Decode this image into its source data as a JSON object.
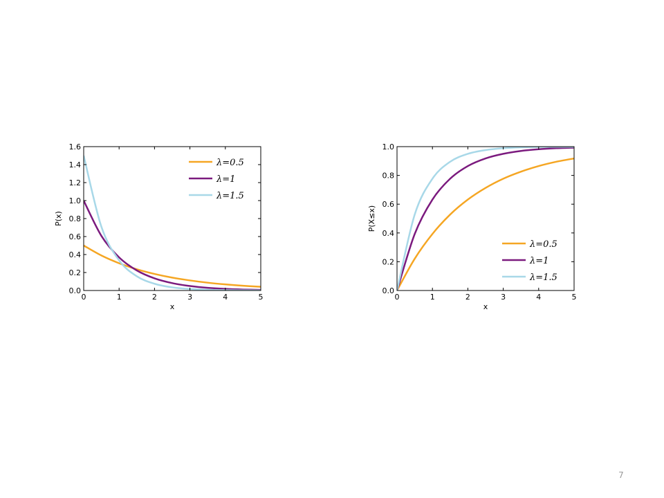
{
  "chart_data": [
    {
      "type": "line",
      "x_label": "x",
      "y_label": "P(x)",
      "x": [
        0,
        0.5,
        1,
        1.5,
        2,
        2.5,
        3,
        3.5,
        4,
        4.5,
        5
      ],
      "series": [
        {
          "name": "λ=0.5",
          "color": "#f5a623",
          "values": [
            0.5,
            0.389,
            0.303,
            0.236,
            0.184,
            0.143,
            0.112,
            0.087,
            0.068,
            0.053,
            0.041
          ]
        },
        {
          "name": "λ=1",
          "color": "#7b1a7e",
          "values": [
            1,
            0.607,
            0.368,
            0.223,
            0.135,
            0.082,
            0.05,
            0.03,
            0.018,
            0.011,
            0.007
          ]
        },
        {
          "name": "λ=1.5",
          "color": "#a8d8e8",
          "values": [
            1.5,
            0.709,
            0.335,
            0.158,
            0.075,
            0.035,
            0.017,
            0.008,
            0.004,
            0.002,
            0.001
          ]
        }
      ],
      "xlim": [
        0,
        5
      ],
      "xticks": [
        0,
        1,
        2,
        3,
        4,
        5
      ],
      "ylim": [
        0,
        1.6
      ],
      "yticks": [
        {
          "value": 0,
          "label": "0.0"
        },
        0.2,
        0.4,
        0.6,
        0.8,
        {
          "value": 1,
          "label": "1.0"
        },
        1.2,
        1.4,
        1.6
      ],
      "legend": "upper right"
    },
    {
      "type": "line",
      "x_label": "x",
      "y_label": "P(X≤x)",
      "x": [
        0,
        0.5,
        1,
        1.5,
        2,
        2.5,
        3,
        3.5,
        4,
        4.5,
        5
      ],
      "series": [
        {
          "name": "λ=0.5",
          "color": "#f5a623",
          "values": [
            0,
            0.221,
            0.393,
            0.528,
            0.632,
            0.713,
            0.777,
            0.826,
            0.865,
            0.895,
            0.918
          ]
        },
        {
          "name": "λ=1",
          "color": "#7b1a7e",
          "values": [
            0,
            0.393,
            0.632,
            0.777,
            0.865,
            0.918,
            0.95,
            0.97,
            0.982,
            0.989,
            0.993
          ]
        },
        {
          "name": "λ=1.5",
          "color": "#a8d8e8",
          "values": [
            0,
            0.528,
            0.777,
            0.895,
            0.95,
            0.976,
            0.989,
            0.995,
            0.998,
            0.999,
            0.999
          ]
        }
      ],
      "xlim": [
        0,
        5
      ],
      "xticks": [
        0,
        1,
        2,
        3,
        4,
        5
      ],
      "ylim": [
        0,
        1
      ],
      "yticks": [
        {
          "value": 0,
          "label": "0.0"
        },
        0.2,
        0.4,
        0.6,
        0.8,
        {
          "value": 1,
          "label": "1.0"
        }
      ],
      "legend": "lower right"
    }
  ],
  "page_number": "7"
}
